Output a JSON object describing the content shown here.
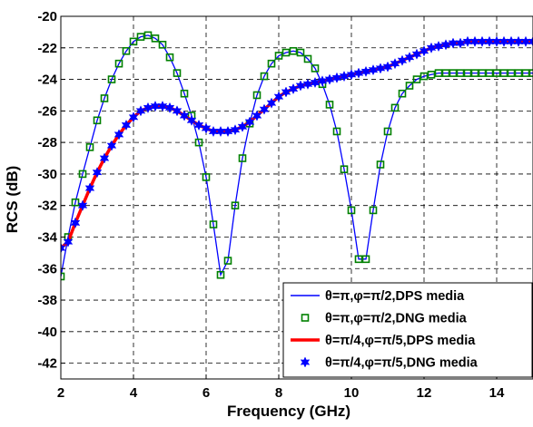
{
  "chart_data": {
    "type": "line",
    "xlabel": "Frequency (GHz)",
    "ylabel": "RCS (dB)",
    "xlim": [
      2,
      15
    ],
    "ylim": [
      -43,
      -20
    ],
    "xticks": [
      2,
      4,
      6,
      8,
      10,
      12,
      14
    ],
    "xtick_labels": [
      "2",
      "4",
      "6",
      "8",
      "10",
      "12",
      "14"
    ],
    "yticks": [
      -20,
      -22,
      -24,
      -26,
      -28,
      -30,
      -32,
      -34,
      -36,
      -38,
      -40,
      -42
    ],
    "ytick_labels": [
      "-20",
      "-22",
      "-24",
      "-26",
      "-28",
      "-30",
      "-32",
      "-34",
      "-36",
      "-38",
      "-40",
      "-42"
    ],
    "grid": true,
    "legend_position": "bottom-right",
    "series": [
      {
        "name": "θ=π,φ=π/2,DPS media",
        "style": "line",
        "color": "#0000ff",
        "x": [
          2.0,
          2.2,
          2.4,
          2.6,
          2.8,
          3.0,
          3.2,
          3.4,
          3.6,
          3.8,
          4.0,
          4.2,
          4.4,
          4.6,
          4.8,
          5.0,
          5.2,
          5.4,
          5.6,
          5.8,
          6.0,
          6.2,
          6.4,
          6.6,
          6.8,
          7.0,
          7.2,
          7.4,
          7.6,
          7.8,
          8.0,
          8.2,
          8.4,
          8.6,
          8.8,
          9.0,
          9.2,
          9.4,
          9.6,
          9.8,
          10.0,
          10.2,
          10.4,
          10.6,
          10.8,
          11.0,
          11.2,
          11.4,
          11.6,
          11.8,
          12.0,
          12.2,
          12.4,
          12.6,
          12.8,
          13.0,
          13.2,
          13.4,
          13.6,
          13.8,
          14.0,
          14.2,
          14.4,
          14.6,
          14.8,
          15.0
        ],
        "y": [
          -36.5,
          -34.0,
          -31.8,
          -30.0,
          -28.3,
          -26.6,
          -25.2,
          -24.0,
          -23.0,
          -22.2,
          -21.6,
          -21.3,
          -21.2,
          -21.4,
          -21.8,
          -22.6,
          -23.6,
          -24.9,
          -26.3,
          -28.0,
          -30.2,
          -33.2,
          -36.4,
          -35.5,
          -32.0,
          -29.0,
          -26.8,
          -25.0,
          -23.8,
          -23.0,
          -22.5,
          -22.3,
          -22.2,
          -22.3,
          -22.7,
          -23.3,
          -24.3,
          -25.6,
          -27.3,
          -29.7,
          -32.3,
          -35.4,
          -35.4,
          -32.3,
          -29.4,
          -27.3,
          -25.8,
          -24.9,
          -24.4,
          -24.0,
          -23.8,
          -23.7,
          -23.6,
          -23.6,
          -23.6,
          -23.6,
          -23.6,
          -23.6,
          -23.6,
          -23.6,
          -23.6,
          -23.6,
          -23.6,
          -23.6,
          -23.6,
          -23.6
        ],
        "x_note": "",
        "y_note": ""
      },
      {
        "name": "θ=π,φ=π/2,DNG media",
        "style": "square-markers",
        "color": "#008000",
        "x": [
          2.0,
          2.2,
          2.4,
          2.6,
          2.8,
          3.0,
          3.2,
          3.4,
          3.6,
          3.8,
          4.0,
          4.2,
          4.4,
          4.6,
          4.8,
          5.0,
          5.2,
          5.4,
          5.6,
          5.8,
          6.0,
          6.2,
          6.4,
          6.6,
          6.8,
          7.0,
          7.2,
          7.4,
          7.6,
          7.8,
          8.0,
          8.2,
          8.4,
          8.6,
          8.8,
          9.0,
          9.2,
          9.4,
          9.6,
          9.8,
          10.0,
          10.2,
          10.4,
          10.6,
          10.8,
          11.0,
          11.2,
          11.4,
          11.6,
          11.8,
          12.0,
          12.2,
          12.4,
          12.6,
          12.8,
          13.0,
          13.2,
          13.4,
          13.6,
          13.8,
          14.0,
          14.2,
          14.4,
          14.6,
          14.8,
          15.0
        ],
        "y": [
          -36.5,
          -34.0,
          -31.8,
          -30.0,
          -28.3,
          -26.6,
          -25.2,
          -24.0,
          -23.0,
          -22.2,
          -21.6,
          -21.3,
          -21.2,
          -21.4,
          -21.8,
          -22.6,
          -23.6,
          -24.9,
          -26.3,
          -28.0,
          -30.2,
          -33.2,
          -36.4,
          -35.5,
          -32.0,
          -29.0,
          -26.8,
          -25.0,
          -23.8,
          -23.0,
          -22.5,
          -22.3,
          -22.2,
          -22.3,
          -22.7,
          -23.3,
          -24.3,
          -25.6,
          -27.3,
          -29.7,
          -32.3,
          -35.4,
          -35.4,
          -32.3,
          -29.4,
          -27.3,
          -25.8,
          -24.9,
          -24.4,
          -24.0,
          -23.8,
          -23.7,
          -23.6,
          -23.6,
          -23.6,
          -23.6,
          -23.6,
          -23.6,
          -23.6,
          -23.6,
          -23.6,
          -23.6,
          -23.6,
          -23.6,
          -23.6,
          -23.6
        ]
      },
      {
        "name": "θ=π/4,φ=π/5,DPS media",
        "style": "thick-line",
        "color": "#ff0000",
        "x": [
          2.0,
          2.2,
          2.4,
          2.6,
          2.8,
          3.0,
          3.2,
          3.4,
          3.6,
          3.8,
          4.0,
          4.2,
          4.4,
          4.6,
          4.8,
          5.0,
          5.2,
          5.4,
          5.6,
          5.8,
          6.0,
          6.2,
          6.4,
          6.6,
          6.8,
          7.0,
          7.2,
          7.4,
          7.6,
          7.8,
          8.0,
          8.2,
          8.4,
          8.6,
          8.8,
          9.0,
          9.2,
          9.4,
          9.6,
          9.8,
          10.0,
          10.2,
          10.4,
          10.6,
          10.8,
          11.0,
          11.2,
          11.4,
          11.6,
          11.8,
          12.0,
          12.2,
          12.4,
          12.6,
          12.8,
          13.0,
          13.2,
          13.4,
          13.6,
          13.8,
          14.0,
          14.2,
          14.4,
          14.6,
          14.8,
          15.0
        ],
        "y": [
          -34.7,
          -34.3,
          -33.1,
          -32.0,
          -30.9,
          -29.9,
          -29.0,
          -28.2,
          -27.5,
          -26.9,
          -26.4,
          -26.0,
          -25.8,
          -25.7,
          -25.7,
          -25.8,
          -26.0,
          -26.3,
          -26.6,
          -26.9,
          -27.1,
          -27.3,
          -27.3,
          -27.3,
          -27.2,
          -27.0,
          -26.7,
          -26.3,
          -25.9,
          -25.5,
          -25.1,
          -24.8,
          -24.6,
          -24.4,
          -24.3,
          -24.2,
          -24.1,
          -24.0,
          -23.9,
          -23.8,
          -23.7,
          -23.6,
          -23.5,
          -23.4,
          -23.3,
          -23.2,
          -23.0,
          -22.8,
          -22.6,
          -22.4,
          -22.2,
          -22.0,
          -21.9,
          -21.8,
          -21.7,
          -21.7,
          -21.6,
          -21.6,
          -21.6,
          -21.6,
          -21.6,
          -21.6,
          -21.6,
          -21.6,
          -21.6,
          -21.6
        ]
      },
      {
        "name": "θ=π/4,φ=π/5,DNG media",
        "style": "star-markers",
        "color": "#0000ff",
        "x": [
          2.0,
          2.2,
          2.4,
          2.6,
          2.8,
          3.0,
          3.2,
          3.4,
          3.6,
          3.8,
          4.0,
          4.2,
          4.4,
          4.6,
          4.8,
          5.0,
          5.2,
          5.4,
          5.6,
          5.8,
          6.0,
          6.2,
          6.4,
          6.6,
          6.8,
          7.0,
          7.2,
          7.4,
          7.6,
          7.8,
          8.0,
          8.2,
          8.4,
          8.6,
          8.8,
          9.0,
          9.2,
          9.4,
          9.6,
          9.8,
          10.0,
          10.2,
          10.4,
          10.6,
          10.8,
          11.0,
          11.2,
          11.4,
          11.6,
          11.8,
          12.0,
          12.2,
          12.4,
          12.6,
          12.8,
          13.0,
          13.2,
          13.4,
          13.6,
          13.8,
          14.0,
          14.2,
          14.4,
          14.6,
          14.8,
          15.0
        ],
        "y": [
          -34.7,
          -34.3,
          -33.1,
          -32.0,
          -30.9,
          -29.9,
          -29.0,
          -28.2,
          -27.5,
          -26.9,
          -26.4,
          -26.0,
          -25.8,
          -25.7,
          -25.7,
          -25.8,
          -26.0,
          -26.3,
          -26.6,
          -26.9,
          -27.1,
          -27.3,
          -27.3,
          -27.3,
          -27.2,
          -27.0,
          -26.7,
          -26.3,
          -25.9,
          -25.5,
          -25.1,
          -24.8,
          -24.6,
          -24.4,
          -24.3,
          -24.2,
          -24.1,
          -24.0,
          -23.9,
          -23.8,
          -23.7,
          -23.6,
          -23.5,
          -23.4,
          -23.3,
          -23.2,
          -23.0,
          -22.8,
          -22.6,
          -22.4,
          -22.2,
          -22.0,
          -21.9,
          -21.8,
          -21.7,
          -21.7,
          -21.6,
          -21.6,
          -21.6,
          -21.6,
          -21.6,
          -21.6,
          -21.6,
          -21.6,
          -21.6,
          -21.6
        ]
      }
    ]
  }
}
